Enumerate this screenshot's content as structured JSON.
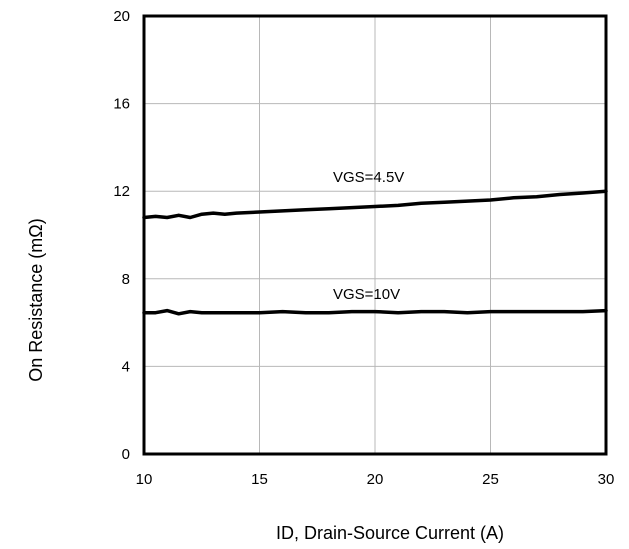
{
  "chart_data": {
    "type": "line",
    "title": "",
    "xlabel": "ID, Drain-Source Current (A)",
    "ylabel": "On Resistance (mΩ)",
    "xlim": [
      10,
      30
    ],
    "ylim": [
      0,
      20
    ],
    "xticks": [
      "10",
      "15",
      "20",
      "25",
      "30"
    ],
    "yticks": [
      "0",
      "4",
      "8",
      "12",
      "16",
      "20"
    ],
    "grid": true,
    "annotations": [
      "VGS=4.5V",
      "VGS=10V"
    ],
    "series": [
      {
        "name": "VGS=4.5V",
        "x": [
          10,
          10.5,
          11,
          11.5,
          12,
          12.5,
          13,
          13.5,
          14,
          15,
          16,
          17,
          18,
          19,
          20,
          21,
          22,
          23,
          24,
          25,
          26,
          27,
          28,
          29,
          30
        ],
        "y": [
          10.8,
          10.85,
          10.8,
          10.9,
          10.8,
          10.95,
          11.0,
          10.95,
          11.0,
          11.05,
          11.1,
          11.15,
          11.2,
          11.25,
          11.3,
          11.35,
          11.45,
          11.5,
          11.55,
          11.6,
          11.7,
          11.75,
          11.85,
          11.92,
          12.0
        ]
      },
      {
        "name": "VGS=10V",
        "x": [
          10,
          10.5,
          11,
          11.5,
          12,
          12.5,
          13,
          14,
          15,
          16,
          17,
          18,
          19,
          20,
          21,
          22,
          23,
          24,
          25,
          26,
          27,
          28,
          29,
          30
        ],
        "y": [
          6.45,
          6.45,
          6.55,
          6.4,
          6.5,
          6.45,
          6.45,
          6.45,
          6.45,
          6.5,
          6.45,
          6.45,
          6.5,
          6.5,
          6.45,
          6.5,
          6.5,
          6.45,
          6.5,
          6.5,
          6.5,
          6.5,
          6.5,
          6.55
        ]
      }
    ]
  }
}
